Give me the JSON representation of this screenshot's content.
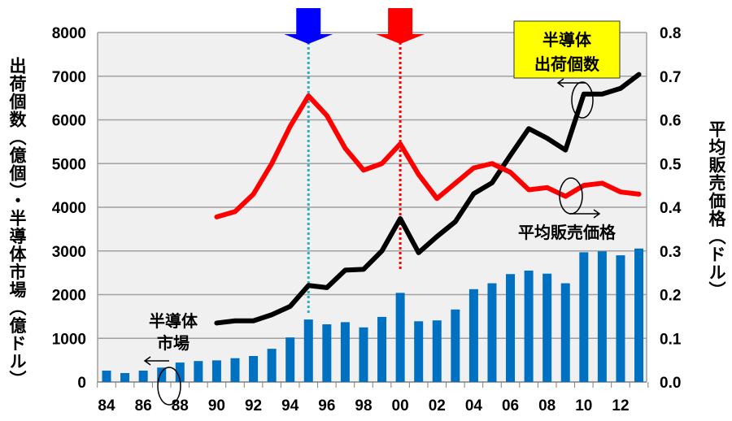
{
  "chart_data": {
    "type": "bar+line",
    "x": [
      "84",
      "85",
      "86",
      "87",
      "88",
      "89",
      "90",
      "91",
      "92",
      "93",
      "94",
      "95",
      "96",
      "97",
      "98",
      "99",
      "00",
      "01",
      "02",
      "03",
      "04",
      "05",
      "06",
      "07",
      "08",
      "09",
      "10",
      "11",
      "12",
      "13"
    ],
    "x_tick_labels": [
      "84",
      "86",
      "88",
      "90",
      "92",
      "94",
      "96",
      "98",
      "00",
      "02",
      "04",
      "06",
      "08",
      "10",
      "12"
    ],
    "left_axis": {
      "label": "出荷個数（億個）・半導体市場（億ドル）",
      "ylim": [
        0,
        8000
      ],
      "ticks": [
        "0",
        "1000",
        "2000",
        "3000",
        "4000",
        "5000",
        "6000",
        "7000",
        "8000"
      ]
    },
    "right_axis": {
      "label": "平均販売価格（ドル）",
      "ylim": [
        0,
        0.8
      ],
      "ticks": [
        "0.0",
        "0.1",
        "0.2",
        "0.3",
        "0.4",
        "0.5",
        "0.6",
        "0.7",
        "0.8"
      ]
    },
    "grid": true,
    "series": [
      {
        "name": "半導体市場",
        "type": "bar",
        "axis": "left",
        "color": "#0070c0",
        "values": [
          260,
          205,
          260,
          330,
          445,
          480,
          495,
          545,
          595,
          760,
          1020,
          1430,
          1320,
          1370,
          1250,
          1490,
          2040,
          1390,
          1410,
          1660,
          2125,
          2260,
          2470,
          2550,
          2480,
          2260,
          2970,
          2990,
          2900,
          3055
        ]
      },
      {
        "name": "半導体出荷個数",
        "type": "line",
        "axis": "left",
        "color": "#000000",
        "values": [
          null,
          null,
          null,
          null,
          null,
          null,
          1350,
          1400,
          1400,
          1540,
          1730,
          2210,
          2160,
          2560,
          2580,
          3000,
          3740,
          2960,
          3330,
          3670,
          4310,
          4560,
          5190,
          5800,
          5580,
          5310,
          6590,
          6590,
          6720,
          7040
        ]
      },
      {
        "name": "平均販売価格",
        "type": "line",
        "axis": "right",
        "color": "#ff0000",
        "values": [
          null,
          null,
          null,
          null,
          null,
          null,
          0.378,
          0.39,
          0.43,
          0.5,
          0.585,
          0.655,
          0.61,
          0.535,
          0.485,
          0.5,
          0.545,
          0.475,
          0.42,
          0.455,
          0.49,
          0.5,
          0.48,
          0.44,
          0.445,
          0.425,
          0.45,
          0.455,
          0.435,
          0.43
        ]
      }
    ],
    "annotations": {
      "market_label": [
        "半導体",
        "市場"
      ],
      "units_label": [
        "半導体",
        "出荷個数"
      ],
      "price_label": "平均販売価格",
      "markers": [
        {
          "year": "95",
          "color": "#0000ff"
        },
        {
          "year": "00",
          "color": "#ff0000"
        }
      ]
    }
  }
}
